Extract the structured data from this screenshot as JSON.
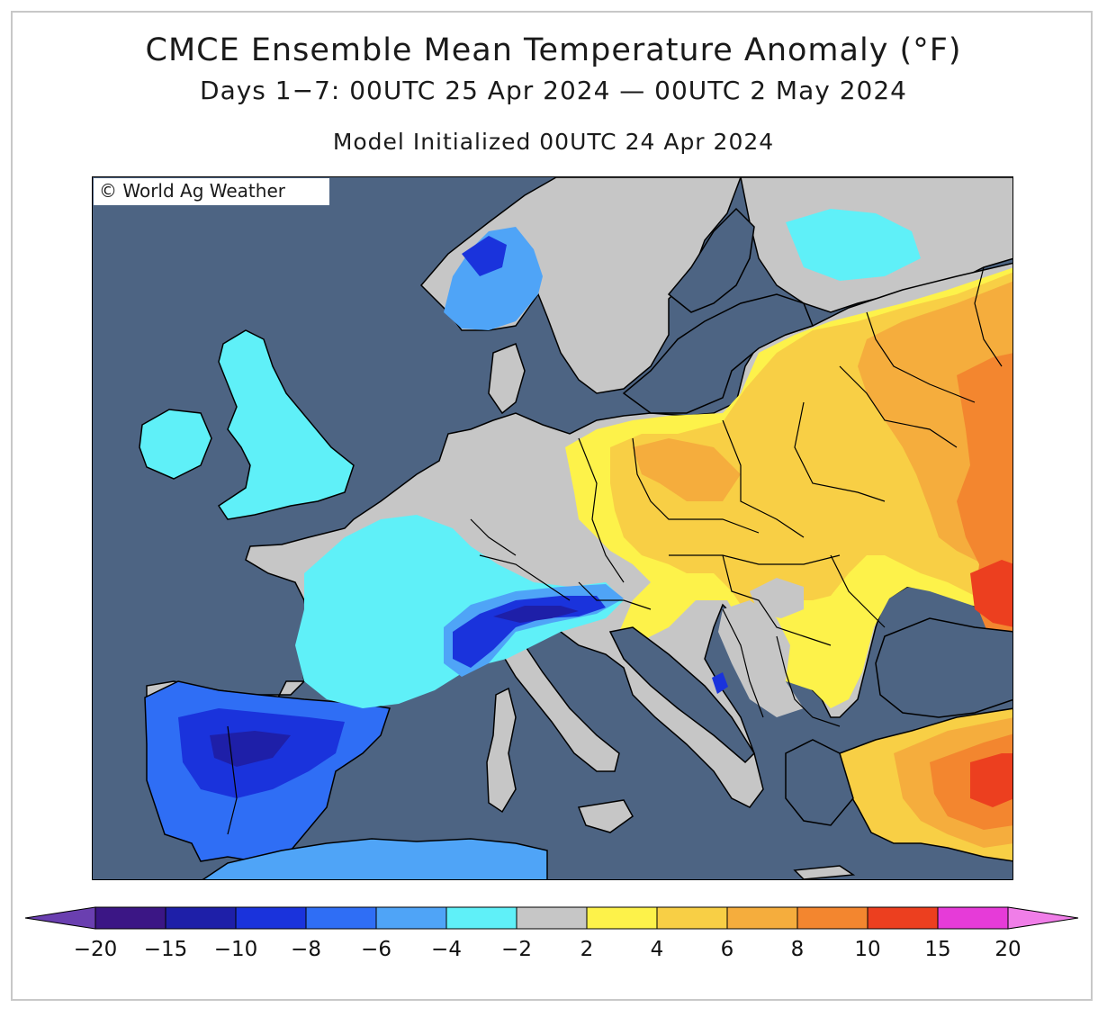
{
  "title": "CMCE Ensemble Mean Temperature Anomaly (°F)",
  "subtitle": "Days 1−7: 00UTC 25 Apr 2024 — 00UTC 2 May 2024",
  "initialized": "Model Initialized 00UTC 24 Apr 2024",
  "credit": "World Ag Weather",
  "colors": {
    "ocean": "#4d6483",
    "land_neutral": "#c6c6c6",
    "coast": "#000000"
  },
  "legend": {
    "ticks": [
      "−20",
      "−15",
      "−10",
      "−8",
      "−6",
      "−4",
      "−2",
      "2",
      "4",
      "6",
      "8",
      "10",
      "15",
      "20"
    ],
    "low_arrow_color": "#6a3fb0",
    "high_arrow_color": "#f07ee8",
    "bins": [
      {
        "range": "−20 to −15",
        "color": "#3b1685"
      },
      {
        "range": "−15 to −10",
        "color": "#1e1fa8"
      },
      {
        "range": "−10 to −8",
        "color": "#1a33dc"
      },
      {
        "range": "−8 to −6",
        "color": "#2f6ef5"
      },
      {
        "range": "−6 to −4",
        "color": "#4fa4f7"
      },
      {
        "range": "−4 to −2",
        "color": "#5ff0f8"
      },
      {
        "range": "−2 to 2",
        "color": "#c6c6c6"
      },
      {
        "range": "2 to 4",
        "color": "#fdf24a"
      },
      {
        "range": "4 to 6",
        "color": "#f8cf45"
      },
      {
        "range": "6 to 8",
        "color": "#f5ad3d"
      },
      {
        "range": "8 to 10",
        "color": "#f3862f"
      },
      {
        "range": "10 to 15",
        "color": "#ec3f1f"
      },
      {
        "range": "15 to 20",
        "color": "#e63bd8"
      }
    ]
  }
}
